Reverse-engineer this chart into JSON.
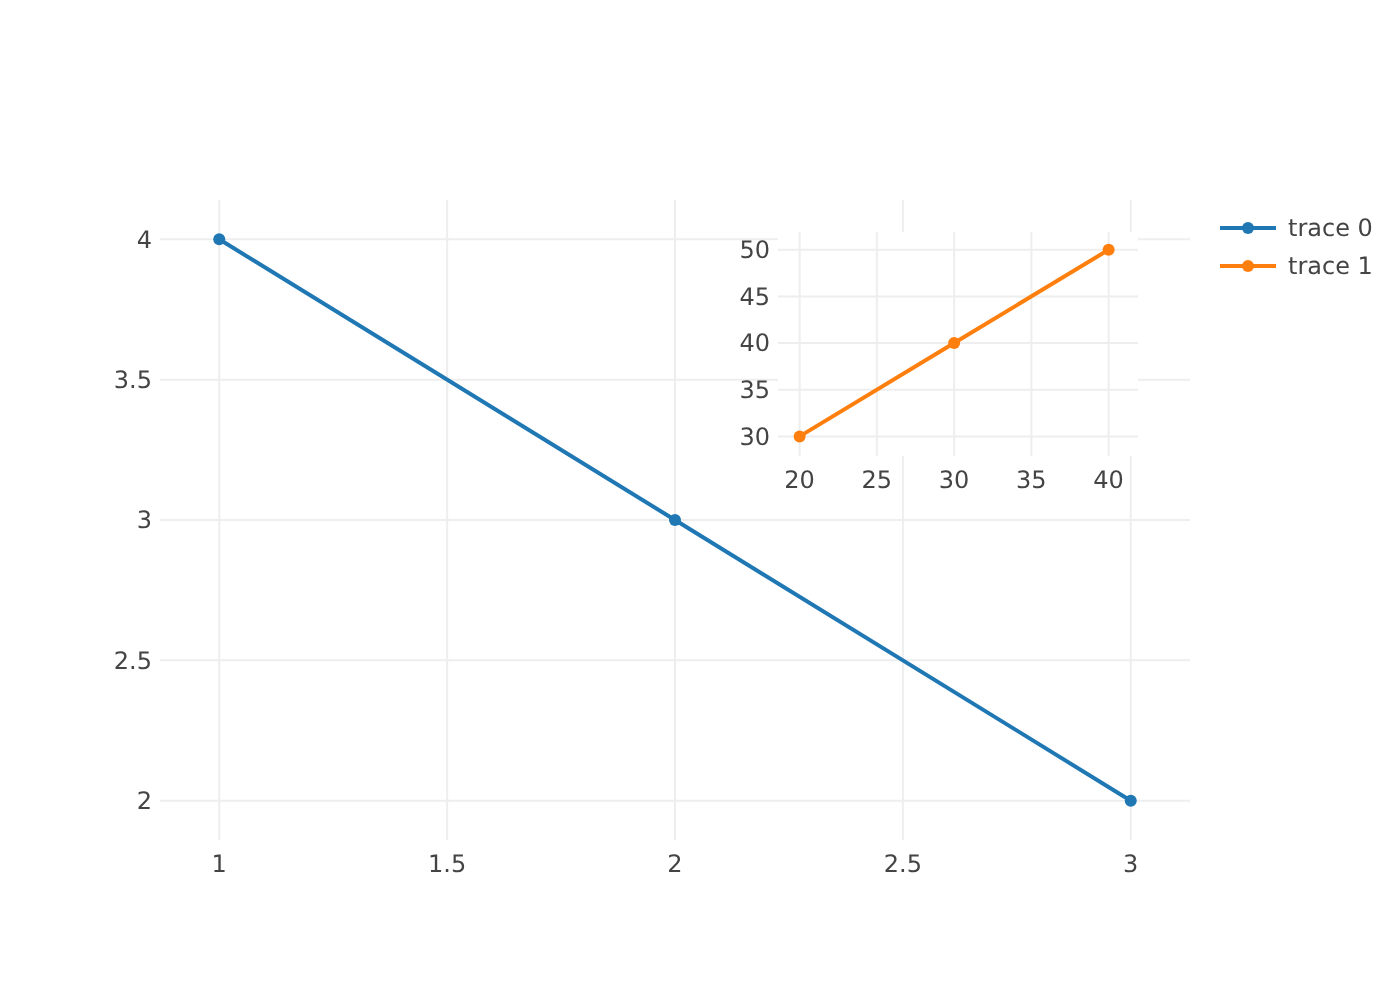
{
  "chart_data": [
    {
      "type": "line",
      "x": [
        1,
        2,
        3
      ],
      "series": [
        {
          "name": "trace 0",
          "color": "#1f77b4",
          "values": [
            4,
            3,
            2
          ]
        }
      ],
      "xlim": [
        0.87,
        3.13
      ],
      "ylim": [
        1.86,
        4.14
      ],
      "xticks": [
        1,
        1.5,
        2,
        2.5,
        3
      ],
      "yticks": [
        2,
        2.5,
        3,
        3.5,
        4
      ],
      "grid": true,
      "legend": "right",
      "marker": "circle"
    },
    {
      "type": "line",
      "x": [
        20,
        30,
        40
      ],
      "series": [
        {
          "name": "trace 1",
          "color": "#ff7f0e",
          "values": [
            30,
            40,
            50
          ]
        }
      ],
      "xlim": [
        18.6,
        41.9
      ],
      "ylim": [
        27.9,
        51.9
      ],
      "xticks": [
        20,
        25,
        30,
        35,
        40
      ],
      "yticks": [
        30,
        35,
        40,
        45,
        50
      ],
      "grid": true,
      "legend": "right",
      "marker": "circle"
    }
  ]
}
